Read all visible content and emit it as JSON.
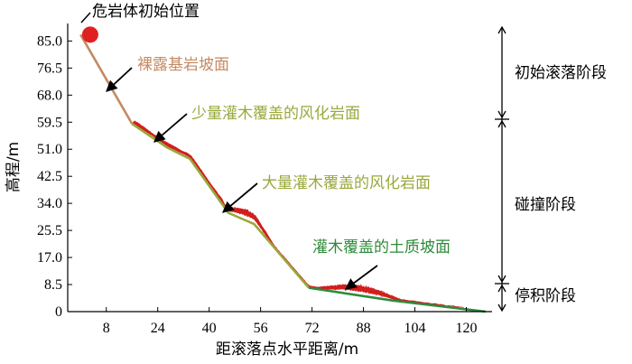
{
  "chart_data": {
    "type": "line",
    "xlabel": "距滚落点水平距离/m",
    "ylabel": "高程/m",
    "xlim": [
      0,
      128
    ],
    "ylim": [
      0,
      90
    ],
    "x_ticks": [
      8,
      24,
      40,
      56,
      72,
      88,
      104,
      120
    ],
    "y_ticks": [
      0,
      8.5,
      17.0,
      25.5,
      34.0,
      42.5,
      51.0,
      59.5,
      68.0,
      76.5,
      85.0
    ],
    "y_tick_labels": [
      "0",
      "8.5",
      "17.0",
      "25.5",
      "34.0",
      "42.5",
      "51.0",
      "59.5",
      "68.0",
      "76.5",
      "85.0"
    ],
    "slope_segments": [
      {
        "label": "裸露基岩坡面",
        "color": "#c58a63",
        "points": [
          [
            0,
            87
          ],
          [
            16,
            59
          ]
        ]
      },
      {
        "label": "少量灌木覆盖的风化岩面",
        "color": "#9aa83c",
        "points": [
          [
            16,
            59
          ],
          [
            27,
            51.5
          ],
          [
            34,
            48
          ]
        ]
      },
      {
        "label": "大量灌木覆盖的风化岩面",
        "color": "#9aa83c",
        "points": [
          [
            34,
            48
          ],
          [
            46,
            31
          ],
          [
            54,
            27.5
          ],
          [
            71,
            7.5
          ]
        ]
      },
      {
        "label": "灌木覆盖的土质坡面",
        "color": "#2e8b3a",
        "points": [
          [
            71,
            7.5
          ],
          [
            97,
            3.5
          ],
          [
            126,
            0
          ]
        ]
      }
    ],
    "trajectory_color": "#d42020",
    "initial_position": {
      "label": "危岩体初始位置",
      "x": 3,
      "y": 87,
      "color": "#e02020"
    },
    "stages": [
      {
        "label": "初始滚落阶段",
        "y_from": 87,
        "y_to": 59.5
      },
      {
        "label": "碰撞阶段",
        "y_from": 59.5,
        "y_to": 8.5
      },
      {
        "label": "停积阶段",
        "y_from": 8.5,
        "y_to": 0
      }
    ]
  }
}
